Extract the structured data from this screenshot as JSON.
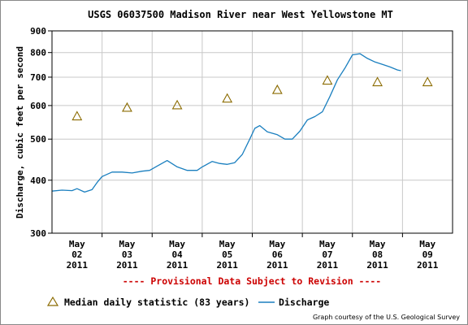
{
  "chart_data": {
    "type": "line",
    "title": "USGS 06037500 Madison River near West Yellowstone MT",
    "ylabel": "Discharge, cubic feet per second",
    "y_scale": "log",
    "ylim": [
      300,
      900
    ],
    "y_ticks": [
      300,
      400,
      500,
      600,
      700,
      800,
      900
    ],
    "x_tick_labels": [
      [
        "May",
        "02",
        "2011"
      ],
      [
        "May",
        "03",
        "2011"
      ],
      [
        "May",
        "04",
        "2011"
      ],
      [
        "May",
        "05",
        "2011"
      ],
      [
        "May",
        "06",
        "2011"
      ],
      [
        "May",
        "07",
        "2011"
      ],
      [
        "May",
        "08",
        "2011"
      ],
      [
        "May",
        "09",
        "2011"
      ]
    ],
    "grid": true,
    "series": [
      {
        "name": "Discharge",
        "type": "line",
        "color": "#1a7fbf",
        "x_day_offset": [
          0.0,
          0.2,
          0.4,
          0.5,
          0.65,
          0.8,
          0.9,
          1.0,
          1.2,
          1.4,
          1.6,
          1.8,
          1.95,
          2.1,
          2.3,
          2.5,
          2.7,
          2.9,
          3.0,
          3.2,
          3.35,
          3.5,
          3.65,
          3.8,
          3.95,
          4.05,
          4.15,
          4.3,
          4.5,
          4.65,
          4.8,
          4.95,
          5.1,
          5.25,
          5.4,
          5.55,
          5.7,
          5.85,
          6.0,
          6.15,
          6.3,
          6.45,
          6.6,
          6.75,
          6.9,
          6.97
        ],
        "values": [
          377,
          379,
          378,
          382,
          375,
          380,
          395,
          408,
          418,
          418,
          416,
          420,
          422,
          432,
          445,
          430,
          422,
          422,
          430,
          443,
          438,
          436,
          440,
          460,
          500,
          530,
          538,
          520,
          512,
          500,
          500,
          522,
          555,
          565,
          580,
          630,
          690,
          735,
          790,
          795,
          775,
          760,
          750,
          740,
          728,
          725
        ]
      },
      {
        "name": "Median daily statistic (83 years)",
        "type": "marker",
        "marker": "triangle",
        "color": "#8b6b00",
        "x_day_offset": [
          0.5,
          1.5,
          2.5,
          3.5,
          4.5,
          5.5,
          6.5,
          7.5
        ],
        "values": [
          565,
          592,
          600,
          622,
          652,
          686,
          680,
          680
        ]
      }
    ]
  },
  "provisional_note": "---- Provisional Data Subject to Revision ----",
  "legend": {
    "median_label": "Median daily statistic (83 years)",
    "discharge_label": "Discharge"
  },
  "credit": "Graph courtesy of the U.S. Geological Survey",
  "colors": {
    "discharge": "#1a7fbf",
    "median_marker": "#8b6b00",
    "provisional": "#cc0000",
    "grid": "#c8c8c8"
  }
}
